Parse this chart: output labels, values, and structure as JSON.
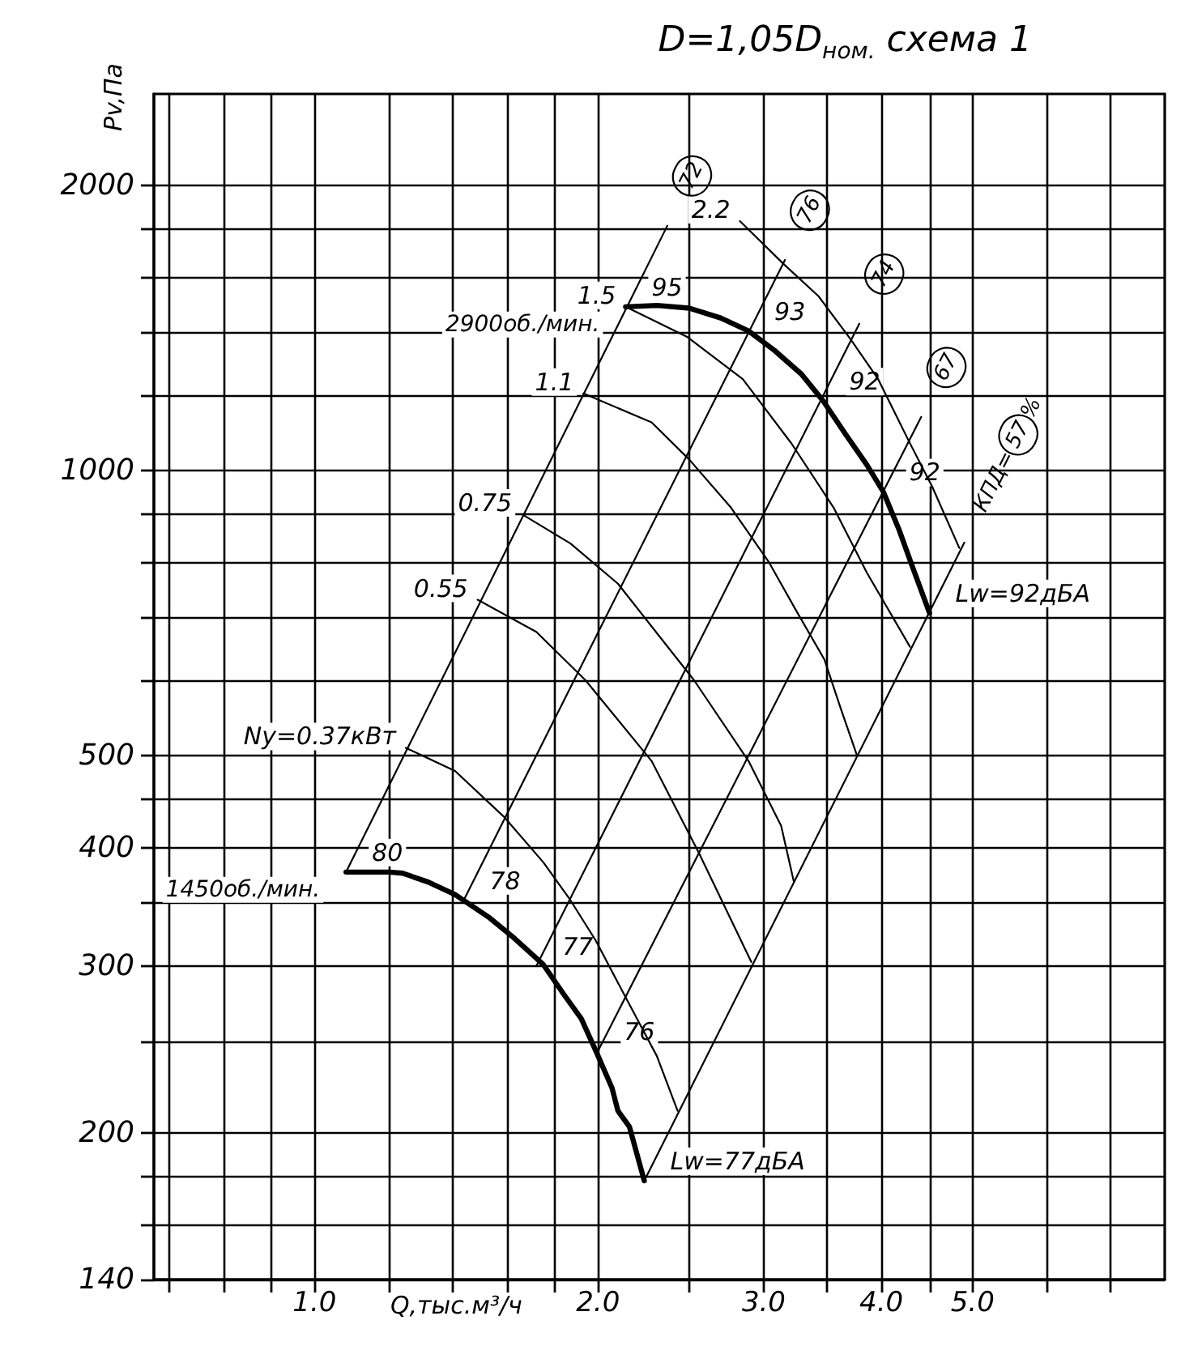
{
  "chart_data": {
    "type": "line",
    "title": "D=1,05D$_{ном.}$ схема 1",
    "xlabel": "Q,тыс.м³/ч",
    "ylabel": "Pv,Па",
    "log": "xy",
    "xlim": [
      0.675,
      8
    ],
    "xticks": [
      {
        "value": 0.7,
        "label": null
      },
      {
        "value": 0.8,
        "label": null
      },
      {
        "value": 0.9,
        "label": null
      },
      {
        "value": 1,
        "label": "1.0"
      },
      {
        "value": 1.2,
        "label": null
      },
      {
        "value": 1.4,
        "label": null
      },
      {
        "value": 1.6,
        "label": null
      },
      {
        "value": 1.8,
        "label": null
      },
      {
        "value": 2,
        "label": "2.0"
      },
      {
        "value": 2.5,
        "label": null
      },
      {
        "value": 3,
        "label": "3.0"
      },
      {
        "value": 3.5,
        "label": null
      },
      {
        "value": 4,
        "label": "4.0"
      },
      {
        "value": 4.5,
        "label": null
      },
      {
        "value": 5,
        "label": "5.0"
      },
      {
        "value": 6,
        "label": null
      },
      {
        "value": 7,
        "label": null
      }
    ],
    "ylim": [
      140,
      2500
    ],
    "yticks": [
      140,
      {
        "value": 160,
        "label": null
      },
      {
        "value": 180,
        "label": null
      },
      200,
      {
        "value": 250,
        "label": null
      },
      300,
      {
        "value": 350,
        "label": null
      },
      400,
      {
        "value": 450,
        "label": null
      },
      500,
      {
        "value": 600,
        "label": null
      },
      {
        "value": 700,
        "label": null
      },
      {
        "value": 800,
        "label": null
      },
      {
        "value": 900,
        "label": null
      },
      1000,
      {
        "value": 1200,
        "label": null
      },
      {
        "value": 1400,
        "label": null
      },
      {
        "value": 1600,
        "label": null
      },
      {
        "value": 1800,
        "label": null
      },
      2000
    ],
    "grid": true,
    "series": [
      {
        "name": "2900об./мин.",
        "color": "#000000",
        "x": [
          2.14,
          2.31,
          2.5,
          2.7,
          2.89,
          3.08,
          3.29,
          3.47,
          3.66,
          3.86,
          4.02,
          4.18,
          4.32,
          4.5
        ],
        "values": [
          1490,
          1495,
          1485,
          1450,
          1405,
          1340,
          1265,
          1185,
          1095,
          1015,
          950,
          865,
          790,
          708
        ]
      },
      {
        "name": "1450об./мин.",
        "color": "#000000",
        "x": [
          1.08,
          1.2,
          1.24,
          1.32,
          1.41,
          1.53,
          1.63,
          1.75,
          1.84,
          1.92,
          1.99,
          2.07,
          2.1,
          2.16,
          2.24
        ],
        "values": [
          377,
          377,
          376,
          368,
          357,
          338,
          321,
          301,
          280,
          264,
          244,
          223,
          211,
          203,
          178
        ]
      },
      {
        "name": "Ny=0.37кВт",
        "color": "#000000",
        "x": [
          1.25,
          1.41,
          1.59,
          1.75,
          1.87,
          1.99,
          2.14,
          2.31,
          2.43
        ],
        "values": [
          510,
          482,
          431,
          386,
          352,
          319,
          278,
          241,
          211
        ]
      },
      {
        "name": "0.55",
        "color": "#000000",
        "x": [
          1.49,
          1.72,
          1.94,
          2.28,
          2.56,
          2.91
        ],
        "values": [
          731,
          676,
          601,
          494,
          395,
          303
        ]
      },
      {
        "name": "0.75",
        "color": "#000000",
        "x": [
          1.66,
          1.87,
          2.1,
          2.53,
          2.89,
          3.13,
          3.23
        ],
        "values": [
          900,
          838,
          760,
          601,
          494,
          422,
          368
        ]
      },
      {
        "name": "1.1",
        "color": "#000000",
        "x": [
          1.93,
          2.28,
          2.5,
          2.77,
          3.04,
          3.25,
          3.48,
          3.62,
          3.77
        ],
        "values": [
          1207,
          1125,
          1028,
          914,
          800,
          711,
          632,
          562,
          500
        ]
      },
      {
        "name": "1.5",
        "color": "#000000",
        "x": [
          2.14,
          2.49,
          2.85,
          3.21,
          3.56,
          3.86,
          4.29
        ],
        "values": [
          1490,
          1384,
          1250,
          1069,
          914,
          781,
          652
        ]
      },
      {
        "name": "2.2",
        "color": "#000000",
        "x": [
          2.83,
          3.15,
          3.43,
          3.71,
          3.97,
          4.28,
          4.53,
          4.84
        ],
        "values": [
          1835,
          1653,
          1529,
          1377,
          1249,
          1074,
          962,
          829
        ]
      },
      {
        "name": "72",
        "color": "#000000",
        "x": [
          1.08,
          2.37
        ],
        "values": [
          377,
          1815
        ]
      },
      {
        "name": "76",
        "color": "#000000",
        "x": [
          1.44,
          3.16
        ],
        "values": [
          352,
          1670
        ]
      },
      {
        "name": "74",
        "color": "#000000",
        "x": [
          1.72,
          3.79
        ],
        "values": [
          300,
          1430
        ]
      },
      {
        "name": "67",
        "color": "#000000",
        "x": [
          2.0,
          4.41
        ],
        "values": [
          244,
          1140
        ]
      },
      {
        "name": "КПД=57%",
        "color": "#000000",
        "x": [
          2.24,
          4.9
        ],
        "values": [
          178,
          840
        ]
      }
    ],
    "annotations": [
      {
        "text": "95",
        "x": 2.14,
        "y": 1490
      },
      {
        "text": "93",
        "x": 2.89,
        "y": 1405
      },
      {
        "text": "92",
        "x": 3.47,
        "y": 1185
      },
      {
        "text": "92",
        "x": 4.02,
        "y": 950
      },
      {
        "text": "Lw=92дБА",
        "x": 4.5,
        "y": 708
      },
      {
        "text": "80",
        "x": 1.08,
        "y": 377
      },
      {
        "text": "78",
        "x": 1.44,
        "y": 352
      },
      {
        "text": "77",
        "x": 1.72,
        "y": 300
      },
      {
        "text": "76",
        "x": 2.0,
        "y": 244
      },
      {
        "text": "Lw=77дБА",
        "x": 2.24,
        "y": 178
      }
    ]
  }
}
